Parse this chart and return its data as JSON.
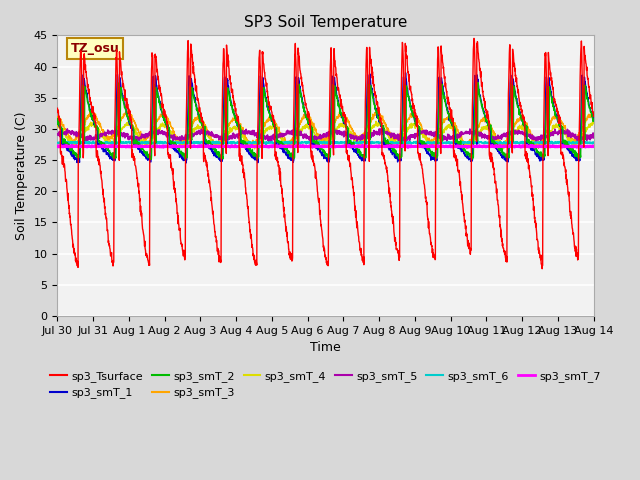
{
  "title": "SP3 Soil Temperature",
  "xlabel": "Time",
  "ylabel": "Soil Temperature (C)",
  "ylim": [
    0,
    45
  ],
  "yticks": [
    0,
    5,
    10,
    15,
    20,
    25,
    30,
    35,
    40,
    45
  ],
  "n_days": 15,
  "annotation_text": "TZ_osu",
  "annotation_color": "#8B0000",
  "annotation_bg": "#FFFFC0",
  "annotation_border": "#B8860B",
  "series_colors": {
    "sp3_Tsurface": "#FF0000",
    "sp3_smT_1": "#0000CC",
    "sp3_smT_2": "#00BB00",
    "sp3_smT_3": "#FFA500",
    "sp3_smT_4": "#DDDD00",
    "sp3_smT_5": "#AA00AA",
    "sp3_smT_6": "#00CCCC",
    "sp3_smT_7": "#FF00FF"
  },
  "bg_color": "#D8D8D8",
  "plot_bg_color": "#F2F2F2",
  "grid_color": "#FFFFFF",
  "x_labels": [
    "Jul 30",
    "Jul 31",
    "Aug 1",
    "Aug 2",
    "Aug 3",
    "Aug 4",
    "Aug 5",
    "Aug 6",
    "Aug 7",
    "Aug 8",
    "Aug 9",
    "Aug 10",
    "Aug 11",
    "Aug 12",
    "Aug 13",
    "Aug 14"
  ]
}
